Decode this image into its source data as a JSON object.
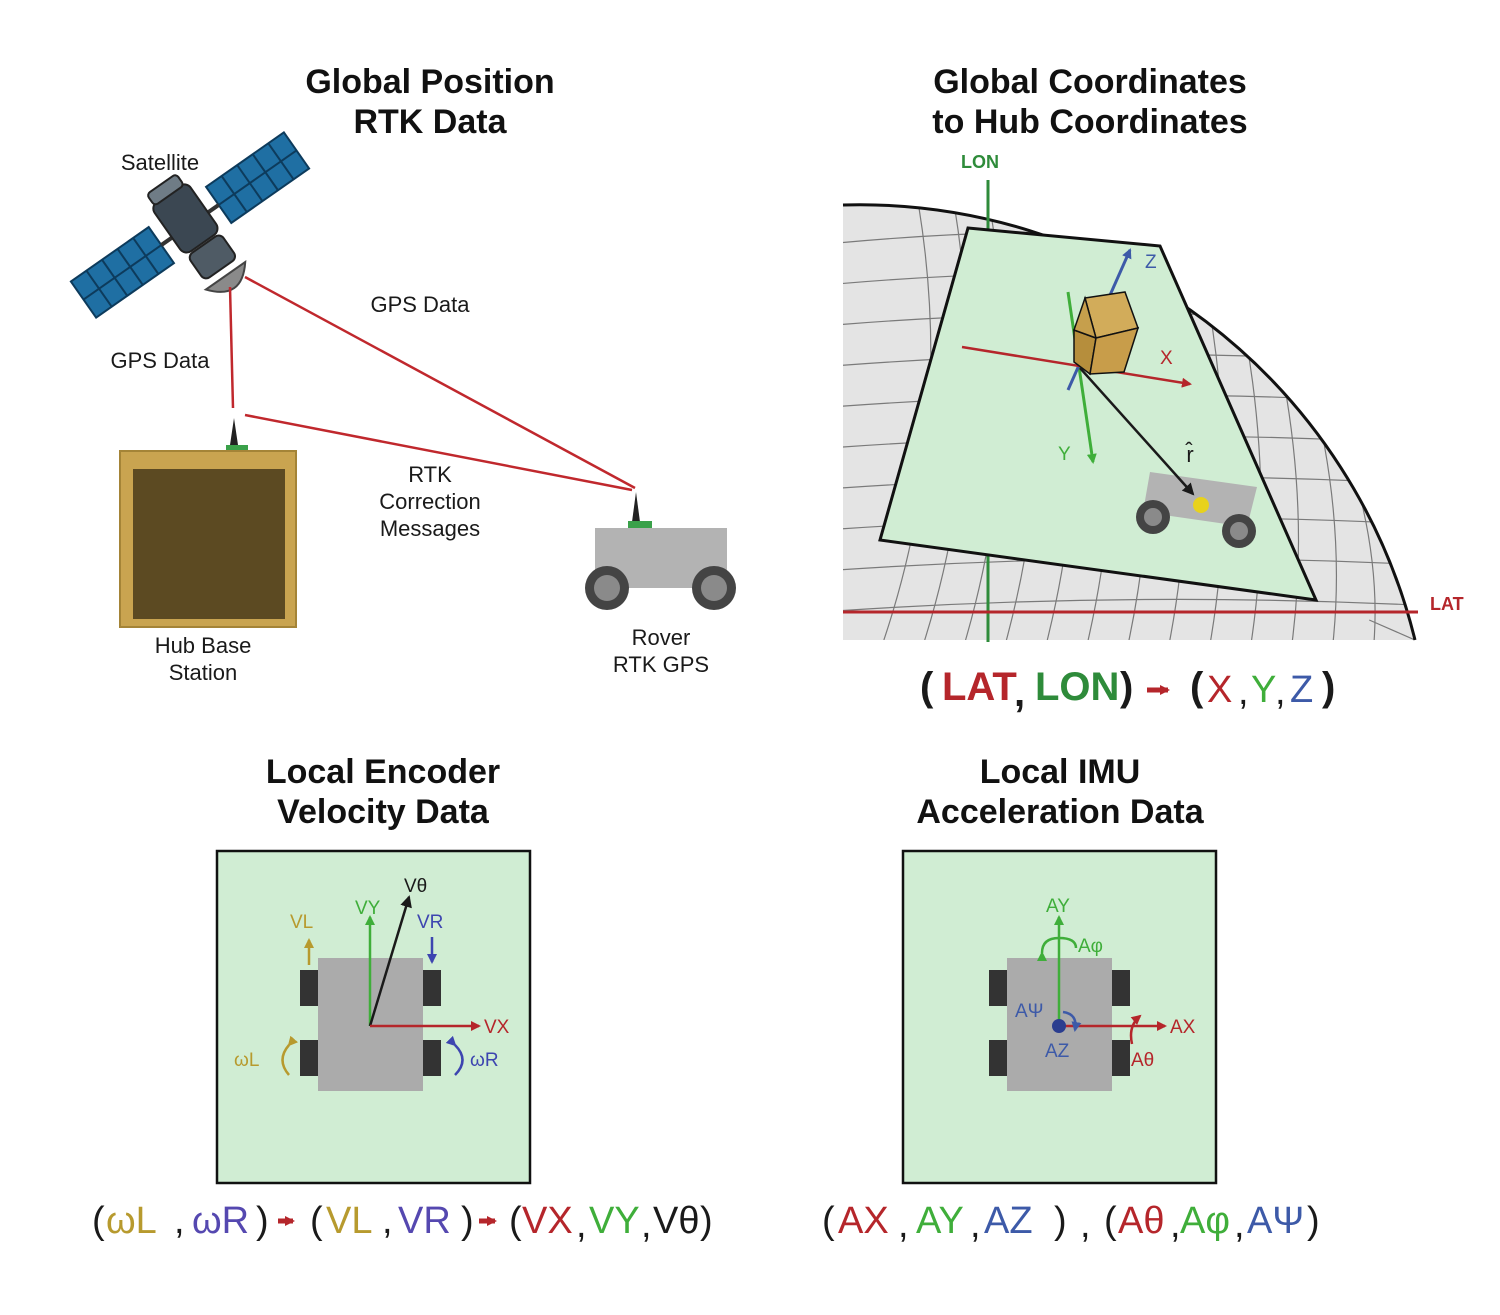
{
  "colors": {
    "red": "#b5262b",
    "green": "#2e8b3a",
    "lime": "#3fae3a",
    "blue": "#3d5aa8",
    "gold": "#b79a2e",
    "purple": "#5548b0",
    "dark": "#1a1a1a",
    "panel_green": "#d0edd3",
    "hub_brown": "#5c4a22",
    "hub_frame": "#c9a450",
    "rover_gray": "#b3b3b3",
    "satellite_blue": "#1f6fa3"
  },
  "rtk": {
    "title_line1": "Global Position",
    "title_line2": "RTK Data",
    "satellite_label": "Satellite",
    "gps_left_label": "GPS Data",
    "gps_right_label": "GPS Data",
    "rtk_line1": "RTK",
    "rtk_line2": "Correction",
    "rtk_line3": "Messages",
    "hub_line1": "Hub Base",
    "hub_line2": "Station",
    "rover_line1": "Rover",
    "rover_line2": "RTK GPS"
  },
  "globe": {
    "title_line1": "Global Coordinates",
    "title_line2": "to Hub Coordinates",
    "lon_label": "LON",
    "lat_label": "LAT",
    "x_label": "X",
    "y_label": "Y",
    "z_label": "Z",
    "r_label": "r̂",
    "formula": {
      "open1": "(",
      "lat": "LAT",
      "comma1": ",",
      "lon": "LON",
      "close1": ")",
      "open2": "(",
      "x": "X",
      "comma2": ",",
      "y": "Y",
      "comma3": ",",
      "z": "Z",
      "close2": ")"
    }
  },
  "encoder": {
    "title_line1": "Local Encoder",
    "title_line2": "Velocity Data",
    "vl": "VL",
    "vy": "VY",
    "vtheta": "Vθ",
    "vr": "VR",
    "vx": "VX",
    "wl": "ωL",
    "wr": "ωR",
    "formula": {
      "open1": "(",
      "wl": "ωL",
      "comma1": ",",
      "wr": "ωR",
      "close1": ")",
      "open2": "(",
      "vl": "VL",
      "comma2": ",",
      "vr": "VR",
      "close2": ")",
      "open3": "(",
      "vx": "VX",
      "comma3": ",",
      "vy": "VY",
      "comma4": ",",
      "vtheta": "Vθ",
      "close3": ")"
    }
  },
  "imu": {
    "title_line1": "Local IMU",
    "title_line2": "Acceleration Data",
    "ay": "AY",
    "aphi": "Aφ",
    "apsi": "AΨ",
    "az": "AZ",
    "ax": "AX",
    "atheta": "Aθ",
    "formula": {
      "open1": "(",
      "ax": "AX",
      "comma1": ",",
      "ay": "AY",
      "comma2": ",",
      "az": "AZ",
      "close1": ")",
      "sep": ",",
      "open2": "(",
      "atheta": "Aθ",
      "comma3": ",",
      "aphi": "Aφ",
      "comma4": ",",
      "apsi": "AΨ",
      "close2": ")"
    }
  }
}
